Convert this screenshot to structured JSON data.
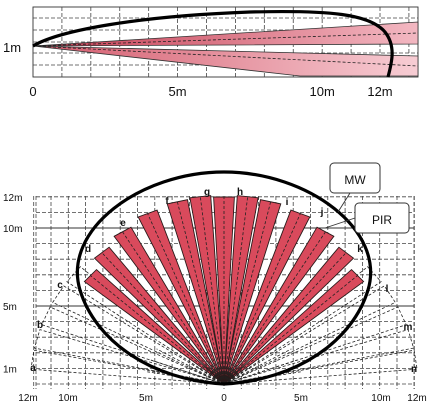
{
  "side_view": {
    "height_label": "1m",
    "x_ticks": [
      {
        "label": "0",
        "m": 0
      },
      {
        "label": "5m",
        "m": 5
      },
      {
        "label": "10m",
        "m": 10
      },
      {
        "label": "12m",
        "m": 12
      }
    ]
  },
  "top_view": {
    "y_ticks": [
      {
        "label": "12m",
        "m": 12
      },
      {
        "label": "10m",
        "m": 10
      },
      {
        "label": "5m",
        "m": 5
      },
      {
        "label": "1m",
        "m": 1
      }
    ],
    "x_ticks": [
      {
        "label": "12m",
        "m": -12
      },
      {
        "label": "10m",
        "m": -10
      },
      {
        "label": "5m",
        "m": -5
      },
      {
        "label": "0",
        "m": 0
      },
      {
        "label": "5m",
        "m": 5
      },
      {
        "label": "10m",
        "m": 10
      },
      {
        "label": "12m",
        "m": 12
      }
    ],
    "zone_letters": [
      "a",
      "b",
      "c",
      "d",
      "e",
      "f",
      "g",
      "h",
      "i",
      "j",
      "k",
      "l",
      "m",
      "n"
    ],
    "callouts": {
      "mw": "MW",
      "pir": "PIR"
    }
  },
  "colors": {
    "beam": "#d94a5c",
    "beam_light": "#f2b3bd",
    "outline": "#000000"
  }
}
